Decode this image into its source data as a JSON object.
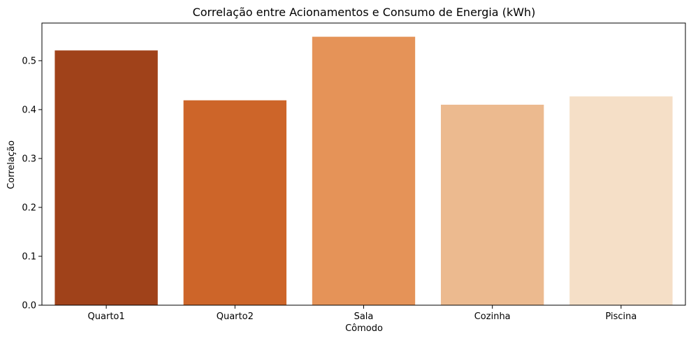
{
  "chart_data": {
    "type": "bar",
    "title": "Correlação entre Acionamentos e Consumo de Energia (kWh)",
    "xlabel": "Cômodo",
    "ylabel": "Correlação",
    "categories": [
      "Quarto1",
      "Quarto2",
      "Sala",
      "Cozinha",
      "Piscina"
    ],
    "values": [
      0.521,
      0.419,
      0.549,
      0.41,
      0.427
    ],
    "colors": [
      "#a0421a",
      "#cd6529",
      "#e59358",
      "#ecba8f",
      "#f5dfc7"
    ],
    "ylim": [
      0,
      0.577
    ],
    "yticks": [
      0.0,
      0.1,
      0.2,
      0.3,
      0.4,
      0.5
    ],
    "ytick_labels": [
      "0.0",
      "0.1",
      "0.2",
      "0.3",
      "0.4",
      "0.5"
    ],
    "grid": false,
    "legend": "none"
  }
}
